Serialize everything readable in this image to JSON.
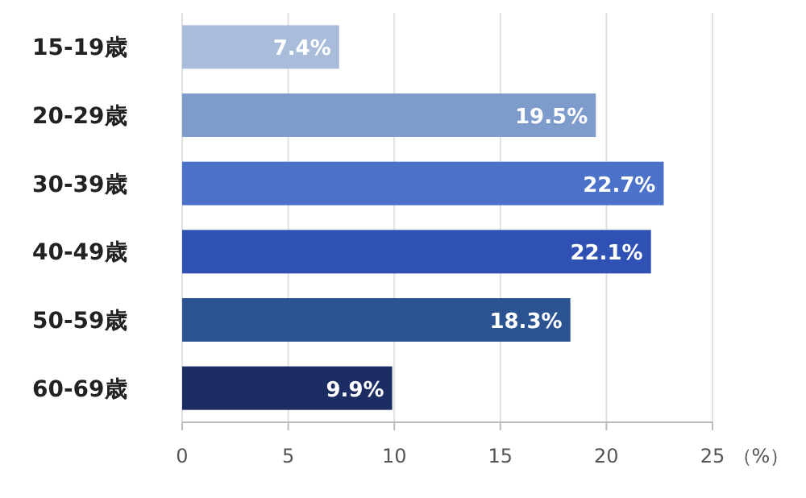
{
  "chart_data": {
    "type": "bar",
    "orientation": "horizontal",
    "xlabel": "（%）",
    "categories": [
      "15-19歳",
      "20-29歳",
      "30-39歳",
      "40-49歳",
      "50-59歳",
      "60-69歳"
    ],
    "values": [
      7.4,
      19.5,
      22.7,
      22.1,
      18.3,
      9.9
    ],
    "value_labels": [
      "7.4%",
      "19.5%",
      "22.7%",
      "22.1%",
      "18.3%",
      "9.9%"
    ],
    "colors": [
      "#a9bddb",
      "#7d9ccc",
      "#4c71c9",
      "#2f51b3",
      "#2b5291",
      "#1c2d64"
    ],
    "xlim": [
      0,
      25
    ],
    "xticks": [
      0,
      5,
      10,
      15,
      20,
      25
    ],
    "grid": "x"
  }
}
